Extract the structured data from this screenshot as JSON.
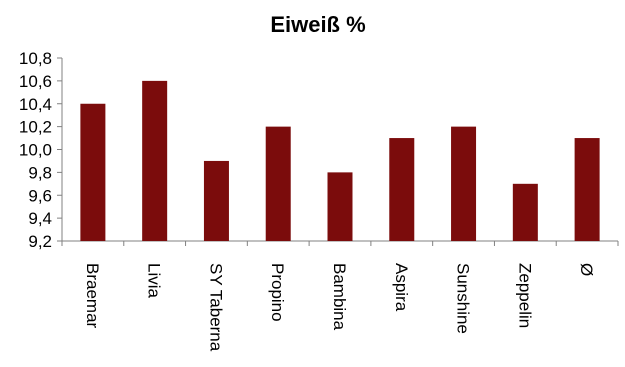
{
  "chart_data": {
    "type": "bar",
    "title": "Eiweiß %",
    "categories": [
      "Braemar",
      "Livia",
      "SY Taberna",
      "Propino",
      "Bambina",
      "Aspira",
      "Sunshine",
      "Zeppelin",
      "Ø"
    ],
    "values": [
      10.4,
      10.6,
      9.9,
      10.2,
      9.8,
      10.1,
      10.2,
      9.7,
      10.1
    ],
    "ylim": [
      9.2,
      10.8
    ],
    "yticks": [
      "9,2",
      "9,4",
      "9,6",
      "9,8",
      "10,0",
      "10,2",
      "10,4",
      "10,6",
      "10,8"
    ],
    "xlabel": "",
    "ylabel": "",
    "grid": false,
    "legend": "none",
    "bar_color": "#7b0c0c"
  }
}
